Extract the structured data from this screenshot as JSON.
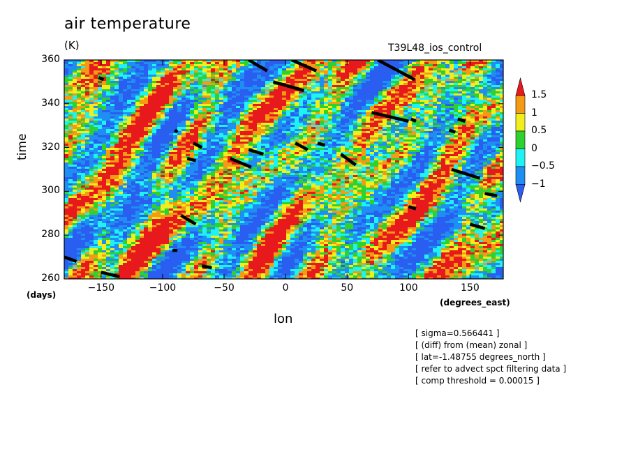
{
  "chart_data": {
    "type": "heatmap",
    "title": "air temperature",
    "units": "(K)",
    "run_label": "T39L48_ios_control",
    "xlabel": "lon",
    "xunit": "(degrees_east)",
    "ylabel": "time",
    "yunit": "(days)",
    "xlim": [
      -180,
      177
    ],
    "ylim": [
      260,
      360
    ],
    "x_ticks": [
      "-150",
      "-100",
      "-50",
      "0",
      "50",
      "100",
      "150"
    ],
    "x_tick_values": [
      -150,
      -100,
      -50,
      0,
      50,
      100,
      150
    ],
    "y_ticks": [
      "260",
      "280",
      "300",
      "320",
      "340",
      "360"
    ],
    "y_tick_values": [
      260,
      280,
      300,
      320,
      340,
      360
    ],
    "colorbar": {
      "levels": [
        "1.5",
        "1",
        "0.5",
        "0",
        "-0.5",
        "-1"
      ],
      "level_values": [
        1.5,
        1,
        0.5,
        0,
        -0.5,
        -1
      ],
      "colors_top_to_bottom": [
        "#e8191c",
        "#f59a14",
        "#f0ee1c",
        "#2ed22e",
        "#1ef2f2",
        "#1e8ef2",
        "#2a5ef0"
      ],
      "extend": "both"
    },
    "threshold_markers": {
      "color": "#000000",
      "segments": [
        [
          [
            -30,
            360
          ],
          [
            -15,
            355
          ]
        ],
        [
          [
            5,
            360
          ],
          [
            25,
            355
          ]
        ],
        [
          [
            -10,
            350
          ],
          [
            15,
            346
          ]
        ],
        [
          [
            75,
            360
          ],
          [
            105,
            351
          ]
        ],
        [
          [
            -152,
            352
          ],
          [
            -148,
            351
          ]
        ],
        [
          [
            70,
            336
          ],
          [
            100,
            332
          ]
        ],
        [
          [
            102,
            333
          ],
          [
            106,
            332
          ]
        ],
        [
          [
            140,
            333
          ],
          [
            146,
            332
          ]
        ],
        [
          [
            133,
            328
          ],
          [
            138,
            327
          ]
        ],
        [
          [
            -90,
            328
          ],
          [
            -88,
            327
          ]
        ],
        [
          [
            -75,
            322
          ],
          [
            -68,
            320
          ]
        ],
        [
          [
            -30,
            319
          ],
          [
            -18,
            317
          ]
        ],
        [
          [
            8,
            322
          ],
          [
            18,
            319
          ]
        ],
        [
          [
            26,
            322
          ],
          [
            32,
            321
          ]
        ],
        [
          [
            -45,
            315
          ],
          [
            -28,
            311
          ]
        ],
        [
          [
            -80,
            315
          ],
          [
            -73,
            314
          ]
        ],
        [
          [
            45,
            317
          ],
          [
            57,
            312
          ]
        ],
        [
          [
            135,
            310
          ],
          [
            158,
            306
          ]
        ],
        [
          [
            162,
            299
          ],
          [
            172,
            298
          ]
        ],
        [
          [
            100,
            293
          ],
          [
            106,
            292
          ]
        ],
        [
          [
            -85,
            289
          ],
          [
            -73,
            285
          ]
        ],
        [
          [
            150,
            285
          ],
          [
            162,
            283
          ]
        ],
        [
          [
            -92,
            273
          ],
          [
            -88,
            273
          ]
        ],
        [
          [
            -180,
            270
          ],
          [
            -170,
            268
          ]
        ],
        [
          [
            -150,
            263
          ],
          [
            -135,
            261
          ]
        ],
        [
          [
            -68,
            266
          ],
          [
            -60,
            265
          ]
        ]
      ]
    }
  },
  "notes": [
    "[ sigma=0.566441 ]",
    "[ (diff) from (mean) zonal ]",
    "[ lat=-1.48755 degrees_north ]",
    "[ refer to advect spct filtering data ]",
    "[ comp threshold = 0.00015 ]"
  ]
}
